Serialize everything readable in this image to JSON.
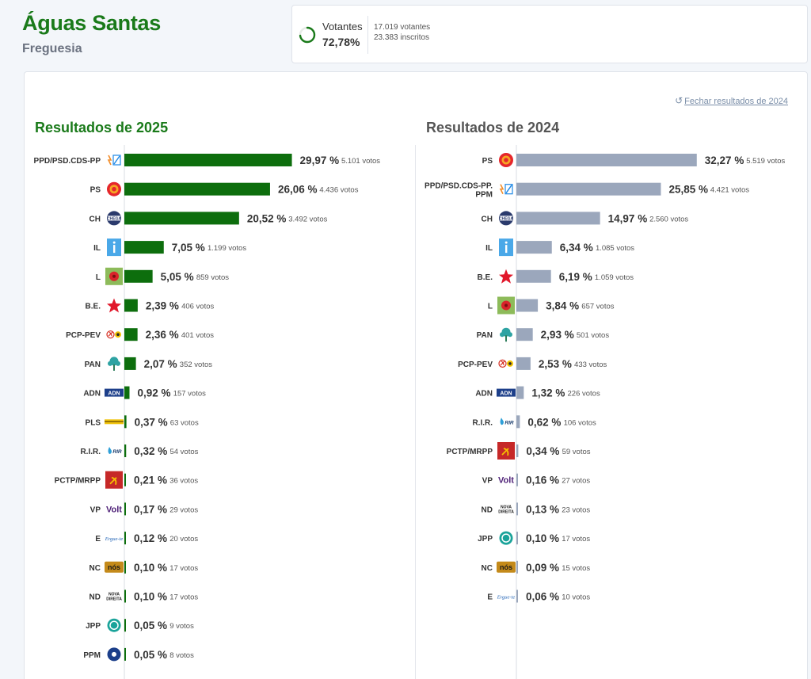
{
  "header": {
    "title": "Águas Santas",
    "subtitle": "Freguesia"
  },
  "turnout": {
    "label": "Votantes",
    "percent": "72,78%",
    "percent_value": 72.78,
    "votes": "17.019 votantes",
    "registered": "23.383 inscritos",
    "color": "#1a7a1a"
  },
  "close_link": {
    "icon": "undo-icon",
    "label": "Fechar resultados de 2024"
  },
  "colors": {
    "bar_2025": "#0d6e0d",
    "bar_2024": "#9ba7bc",
    "baseline": "#d9dde3"
  },
  "chart_data": [
    {
      "type": "bar",
      "orientation": "horizontal",
      "title": "Resultados de 2025",
      "color": "#0d6e0d",
      "rows": [
        {
          "party": "PPD/PSD.CDS-PP",
          "icon": "ad-logo",
          "percent": "29,97 %",
          "value": 29.97,
          "votes": "5.101 votos"
        },
        {
          "party": "PS",
          "icon": "ps-logo",
          "percent": "26,06 %",
          "value": 26.06,
          "votes": "4.436 votos"
        },
        {
          "party": "CH",
          "icon": "chega-logo",
          "percent": "20,52 %",
          "value": 20.52,
          "votes": "3.492 votos"
        },
        {
          "party": "IL",
          "icon": "il-logo",
          "percent": "7,05 %",
          "value": 7.05,
          "votes": "1.199 votos"
        },
        {
          "party": "L",
          "icon": "livre-logo",
          "percent": "5,05 %",
          "value": 5.05,
          "votes": "859 votos"
        },
        {
          "party": "B.E.",
          "icon": "be-star-logo",
          "percent": "2,39 %",
          "value": 2.39,
          "votes": "406 votos"
        },
        {
          "party": "PCP-PEV",
          "icon": "cdu-logo",
          "percent": "2,36 %",
          "value": 2.36,
          "votes": "401 votos"
        },
        {
          "party": "PAN",
          "icon": "pan-logo",
          "percent": "2,07 %",
          "value": 2.07,
          "votes": "352 votos"
        },
        {
          "party": "ADN",
          "icon": "adn-logo",
          "percent": "0,92 %",
          "value": 0.92,
          "votes": "157 votos"
        },
        {
          "party": "PLS",
          "icon": "pls-logo",
          "percent": "0,37 %",
          "value": 0.37,
          "votes": "63 votos"
        },
        {
          "party": "R.I.R.",
          "icon": "rir-logo",
          "percent": "0,32 %",
          "value": 0.32,
          "votes": "54 votos"
        },
        {
          "party": "PCTP/MRPP",
          "icon": "mrpp-logo",
          "percent": "0,21 %",
          "value": 0.21,
          "votes": "36 votos"
        },
        {
          "party": "VP",
          "icon": "volt-logo",
          "percent": "0,17 %",
          "value": 0.17,
          "votes": "29 votos"
        },
        {
          "party": "E",
          "icon": "ergue-te-logo",
          "percent": "0,12 %",
          "value": 0.12,
          "votes": "20 votos"
        },
        {
          "party": "NC",
          "icon": "nos-logo",
          "percent": "0,10 %",
          "value": 0.1,
          "votes": "17 votos"
        },
        {
          "party": "ND",
          "icon": "nova-direita-logo",
          "percent": "0,10 %",
          "value": 0.1,
          "votes": "17 votos"
        },
        {
          "party": "JPP",
          "icon": "jpp-logo",
          "percent": "0,05 %",
          "value": 0.05,
          "votes": "9 votos"
        },
        {
          "party": "PPM",
          "icon": "ppm-logo",
          "percent": "0,05 %",
          "value": 0.05,
          "votes": "8 votos"
        }
      ]
    },
    {
      "type": "bar",
      "orientation": "horizontal",
      "title": "Resultados de 2024",
      "color": "#9ba7bc",
      "rows": [
        {
          "party": "PS",
          "icon": "ps-logo",
          "percent": "32,27 %",
          "value": 32.27,
          "votes": "5.519 votos"
        },
        {
          "party": "PPD/PSD.CDS-PP.PPM",
          "icon": "ad-logo",
          "percent": "25,85 %",
          "value": 25.85,
          "votes": "4.421 votos"
        },
        {
          "party": "CH",
          "icon": "chega-logo",
          "percent": "14,97 %",
          "value": 14.97,
          "votes": "2.560 votos"
        },
        {
          "party": "IL",
          "icon": "il-logo",
          "percent": "6,34 %",
          "value": 6.34,
          "votes": "1.085 votos"
        },
        {
          "party": "B.E.",
          "icon": "be-star-logo",
          "percent": "6,19 %",
          "value": 6.19,
          "votes": "1.059 votos"
        },
        {
          "party": "L",
          "icon": "livre-logo",
          "percent": "3,84 %",
          "value": 3.84,
          "votes": "657 votos"
        },
        {
          "party": "PAN",
          "icon": "pan-logo",
          "percent": "2,93 %",
          "value": 2.93,
          "votes": "501 votos"
        },
        {
          "party": "PCP-PEV",
          "icon": "cdu-logo",
          "percent": "2,53 %",
          "value": 2.53,
          "votes": "433 votos"
        },
        {
          "party": "ADN",
          "icon": "adn-logo",
          "percent": "1,32 %",
          "value": 1.32,
          "votes": "226 votos"
        },
        {
          "party": "R.I.R.",
          "icon": "rir-logo",
          "percent": "0,62 %",
          "value": 0.62,
          "votes": "106 votos"
        },
        {
          "party": "PCTP/MRPP",
          "icon": "mrpp-logo",
          "percent": "0,34 %",
          "value": 0.34,
          "votes": "59 votos"
        },
        {
          "party": "VP",
          "icon": "volt-logo",
          "percent": "0,16 %",
          "value": 0.16,
          "votes": "27 votos"
        },
        {
          "party": "ND",
          "icon": "nova-direita-logo",
          "percent": "0,13 %",
          "value": 0.13,
          "votes": "23 votos"
        },
        {
          "party": "JPP",
          "icon": "jpp-logo",
          "percent": "0,10 %",
          "value": 0.1,
          "votes": "17 votos"
        },
        {
          "party": "NC",
          "icon": "nos-logo",
          "percent": "0,09 %",
          "value": 0.09,
          "votes": "15 votos"
        },
        {
          "party": "E",
          "icon": "ergue-te-logo",
          "percent": "0,06 %",
          "value": 0.06,
          "votes": "10 votos"
        }
      ]
    }
  ]
}
